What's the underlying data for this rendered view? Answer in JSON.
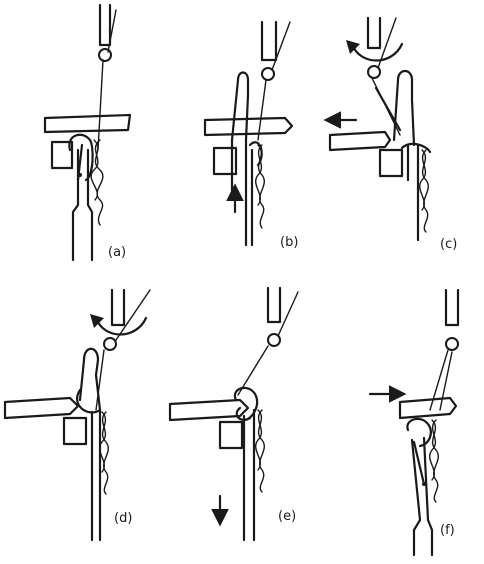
{
  "panels": [
    {
      "id": "a",
      "label": "(a)",
      "arrow": "none"
    },
    {
      "id": "b",
      "label": "(b)",
      "arrow": "up"
    },
    {
      "id": "c",
      "label": "(c)",
      "arrow": "left",
      "rotation_arrow": true
    },
    {
      "id": "d",
      "label": "(d)",
      "arrow": "none",
      "rotation_arrow": true
    },
    {
      "id": "e",
      "label": "(e)",
      "arrow": "down"
    },
    {
      "id": "f",
      "label": "(f)",
      "arrow": "right"
    }
  ],
  "colors": {
    "ink": "#1a1a1a",
    "background": "#ffffff"
  }
}
